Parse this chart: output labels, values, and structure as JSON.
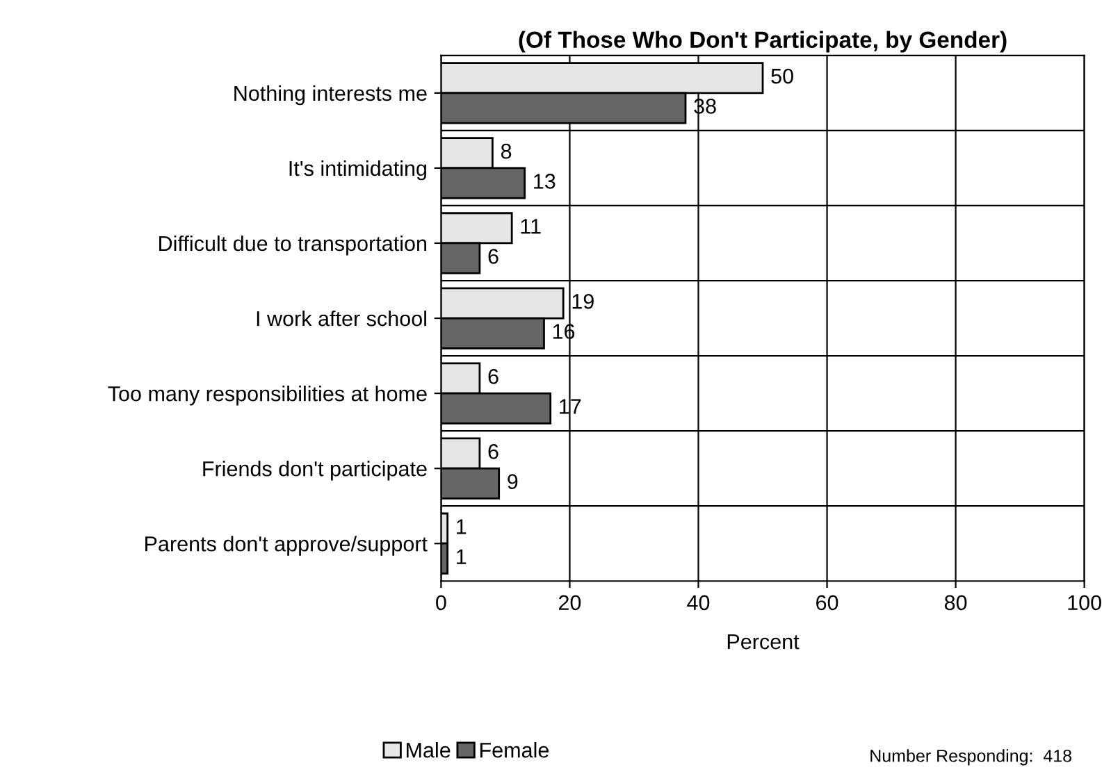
{
  "chart_data": {
    "type": "bar",
    "orientation": "horizontal",
    "title": "(Of Those Who Don't Participate, by Gender)",
    "categories": [
      "Nothing interests me",
      "It's intimidating",
      "Difficult due to transportation",
      "I work after school",
      "Too many responsibilities at home",
      "Friends don't participate",
      "Parents don't approve/support"
    ],
    "series": [
      {
        "name": "Male",
        "color": "#e6e6e6",
        "values": [
          50,
          8,
          11,
          19,
          6,
          6,
          1
        ]
      },
      {
        "name": "Female",
        "color": "#666666",
        "values": [
          38,
          13,
          6,
          16,
          17,
          9,
          1
        ]
      }
    ],
    "xlabel": "Percent",
    "xlim": [
      0,
      100
    ],
    "xticks": [
      0,
      20,
      40,
      60,
      80,
      100
    ],
    "grid": true,
    "legend": "bottom",
    "data_labels": true,
    "annotations": [
      "Number Responding:  418"
    ]
  }
}
